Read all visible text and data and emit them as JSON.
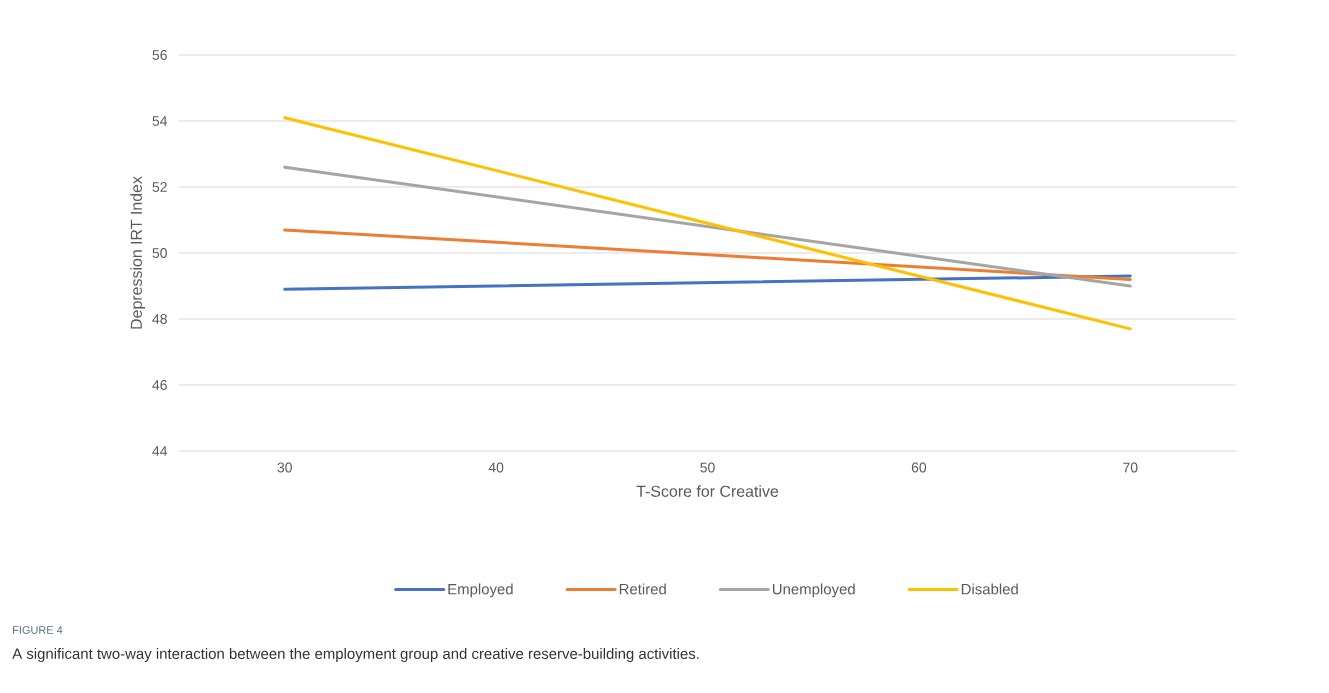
{
  "chart_data": {
    "type": "line",
    "xlabel": "T-Score for Creative",
    "ylabel": "Depression IRT Index",
    "x": [
      30,
      70
    ],
    "series": [
      {
        "name": "Employed",
        "color": "#4472c4",
        "values": [
          48.9,
          49.3
        ]
      },
      {
        "name": "Retired",
        "color": "#ed7d31",
        "values": [
          50.7,
          49.2
        ]
      },
      {
        "name": "Unemployed",
        "color": "#a5a5a5",
        "values": [
          52.6,
          49.0
        ]
      },
      {
        "name": "Disabled",
        "color": "#ffc000",
        "values": [
          54.1,
          47.7
        ]
      }
    ],
    "xlim": [
      25,
      75
    ],
    "xticks": [
      30,
      40,
      50,
      60,
      70
    ],
    "ylim": [
      44,
      56
    ],
    "yticks": [
      44,
      46,
      48,
      50,
      52,
      54,
      56
    ],
    "grid": "y",
    "legend": "bottom",
    "annotations": [
      "FIGURE 4",
      "A significant two-way interaction between the employment group and creative reserve-building activities."
    ]
  }
}
